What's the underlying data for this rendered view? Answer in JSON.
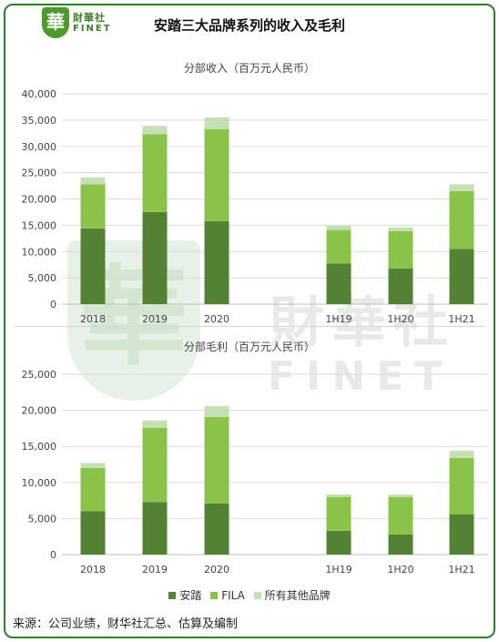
{
  "header": {
    "logo_glyph": "華",
    "logo_cn": "財華社",
    "logo_en": "FINET",
    "title": "安踏三大品牌系列的收入及毛利"
  },
  "watermark": {
    "cn": "財華社",
    "en": "FINET",
    "glyph": "華"
  },
  "colors": {
    "anta": "#548235",
    "fila": "#8bc34a",
    "other": "#c5e0b4",
    "frame": "#2e7d32"
  },
  "legend": [
    "安踏",
    "FILA",
    "所有其他品牌"
  ],
  "source": "来源：公司业绩，财华社汇总、估算及编制",
  "chart_data": [
    {
      "type": "bar",
      "stacked": true,
      "title": "分部收入（百万元人民币）",
      "categories": [
        "2018",
        "2019",
        "2020",
        "",
        "1H19",
        "1H20",
        "1H21"
      ],
      "series": [
        {
          "name": "安踏",
          "values": [
            14400,
            17500,
            15800,
            null,
            7700,
            6800,
            10500
          ]
        },
        {
          "name": "FILA",
          "values": [
            8400,
            14800,
            17500,
            null,
            6400,
            7100,
            11000
          ]
        },
        {
          "name": "所有其他品牌",
          "values": [
            1300,
            1600,
            2200,
            null,
            800,
            700,
            1300
          ]
        }
      ],
      "ylim": [
        0,
        40000
      ],
      "yticks": [
        0,
        5000,
        10000,
        15000,
        20000,
        25000,
        30000,
        35000,
        40000
      ],
      "ytick_labels": [
        "0",
        "5,000",
        "10,000",
        "15,000",
        "20,000",
        "25,000",
        "30,000",
        "35,000",
        "40,000"
      ],
      "grid": true
    },
    {
      "type": "bar",
      "stacked": true,
      "title": "分部毛利（百万元人民币）",
      "categories": [
        "2018",
        "2019",
        "2020",
        "",
        "1H19",
        "1H20",
        "1H21"
      ],
      "series": [
        {
          "name": "安踏",
          "values": [
            6000,
            7300,
            7100,
            null,
            3300,
            2800,
            5600
          ]
        },
        {
          "name": "FILA",
          "values": [
            6000,
            10300,
            12000,
            null,
            4700,
            5200,
            7800
          ]
        },
        {
          "name": "所有其他品牌",
          "values": [
            700,
            1000,
            1500,
            null,
            350,
            300,
            1000
          ]
        }
      ],
      "ylim": [
        0,
        25000
      ],
      "yticks": [
        0,
        5000,
        10000,
        15000,
        20000,
        25000
      ],
      "ytick_labels": [
        "0",
        "5,000",
        "10,000",
        "15,000",
        "20,000",
        "25,000"
      ],
      "grid": true
    }
  ]
}
